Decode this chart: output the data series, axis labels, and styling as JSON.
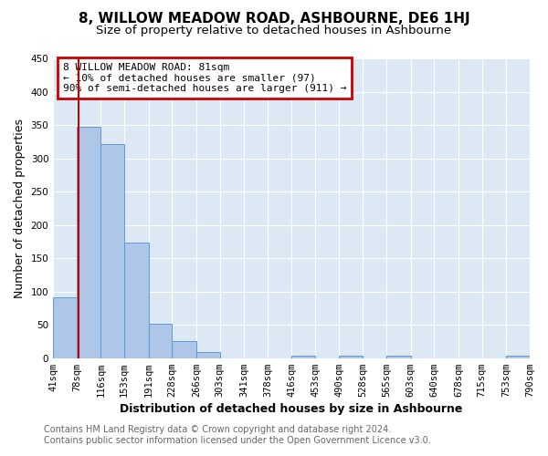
{
  "title": "8, WILLOW MEADOW ROAD, ASHBOURNE, DE6 1HJ",
  "subtitle": "Size of property relative to detached houses in Ashbourne",
  "xlabel": "Distribution of detached houses by size in Ashbourne",
  "ylabel": "Number of detached properties",
  "footer_line1": "Contains HM Land Registry data © Crown copyright and database right 2024.",
  "footer_line2": "Contains public sector information licensed under the Open Government Licence v3.0.",
  "bin_edges": [
    41,
    78,
    116,
    153,
    191,
    228,
    266,
    303,
    341,
    378,
    416,
    453,
    490,
    528,
    565,
    603,
    640,
    678,
    715,
    753,
    790
  ],
  "bin_labels": [
    "41sqm",
    "78sqm",
    "116sqm",
    "153sqm",
    "191sqm",
    "228sqm",
    "266sqm",
    "303sqm",
    "341sqm",
    "378sqm",
    "416sqm",
    "453sqm",
    "490sqm",
    "528sqm",
    "565sqm",
    "603sqm",
    "640sqm",
    "678sqm",
    "715sqm",
    "753sqm",
    "790sqm"
  ],
  "bar_heights": [
    91,
    347,
    321,
    174,
    51,
    26,
    9,
    0,
    0,
    0,
    4,
    0,
    4,
    0,
    4,
    0,
    0,
    0,
    0,
    4
  ],
  "bar_color": "#aec6e8",
  "bar_edgecolor": "#5b9bd5",
  "property_line_x": 81,
  "property_line_color": "#cc0000",
  "annotation_box_text": "8 WILLOW MEADOW ROAD: 81sqm\n← 10% of detached houses are smaller (97)\n90% of semi-detached houses are larger (911) →",
  "annotation_box_color": "#cc0000",
  "ylim": [
    0,
    450
  ],
  "yticks": [
    0,
    50,
    100,
    150,
    200,
    250,
    300,
    350,
    400,
    450
  ],
  "plot_bg_color": "#dce9f5",
  "fig_bg_color": "#ffffff",
  "grid_color": "#ffffff",
  "title_fontsize": 11,
  "subtitle_fontsize": 9.5,
  "axis_label_fontsize": 9,
  "tick_fontsize": 7.5,
  "footer_fontsize": 7
}
